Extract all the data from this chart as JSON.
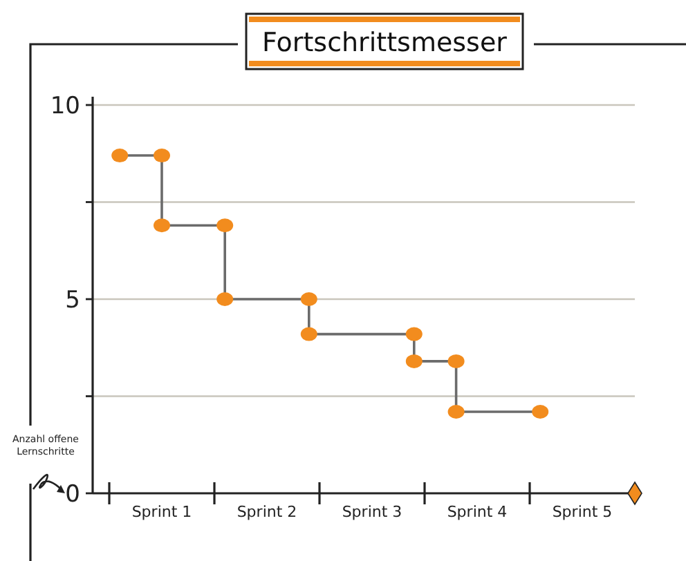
{
  "chart_data": {
    "type": "step",
    "title": "Fortschrittsmesser",
    "ylabel": "Anzahl offene Lernschritte",
    "categories": [
      null,
      null,
      "Sprint 1",
      null,
      null,
      null,
      null,
      "Sprint 2",
      null,
      null,
      null,
      null,
      "Sprint 3",
      null,
      null,
      null,
      null,
      "Sprint 4",
      null,
      null,
      null,
      null,
      "Sprint 5",
      null,
      null
    ],
    "series": [
      {
        "color": "#f28c1e",
        "values": [
          8.7,
          null,
          6.9,
          null,
          null,
          5,
          null,
          null,
          null,
          4.1,
          null,
          null,
          null,
          null,
          3.4,
          null,
          2.1,
          null,
          null,
          null,
          2.1,
          null,
          null,
          null,
          null
        ]
      },
      {
        "type": "scatter",
        "color": "#f28c1e",
        "values": [
          null,
          null,
          8.7,
          null,
          null,
          6.9,
          null,
          null,
          null,
          5,
          null,
          null,
          null,
          null,
          4.1,
          null,
          3.4,
          null,
          null,
          null,
          null,
          null,
          null,
          null,
          null
        ]
      }
    ],
    "ylim": [
      0,
      10
    ],
    "yticks": [
      0,
      {
        "value": 2.5,
        "label": null
      },
      5,
      {
        "value": 7.5,
        "label": null
      },
      10
    ],
    "grid": "y",
    "marker": "circle",
    "line_style": "solid"
  }
}
